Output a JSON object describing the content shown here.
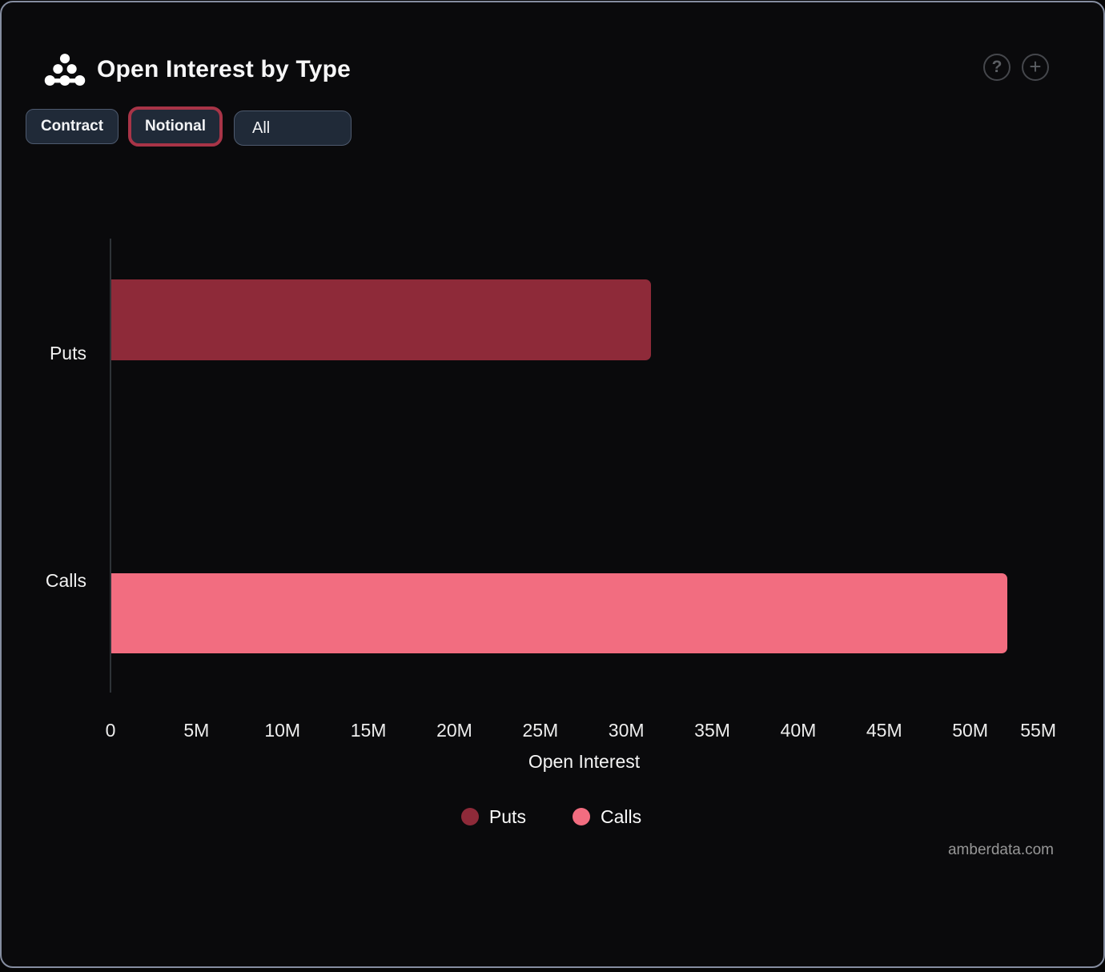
{
  "header": {
    "title": "Open Interest by Type",
    "help_label": "?",
    "add_label": "+"
  },
  "toolbar": {
    "buttons": [
      {
        "label": "Contract",
        "selected": false
      },
      {
        "label": "Notional",
        "selected": true
      },
      {
        "label": "All",
        "selected": false
      }
    ]
  },
  "chart_data": {
    "type": "bar",
    "orientation": "horizontal",
    "title": "Open Interest by Type",
    "categories": [
      "Puts",
      "Calls"
    ],
    "values": [
      31400000,
      52100000
    ],
    "values_approx_display": [
      "31.4M",
      "52.1M"
    ],
    "series_colors": [
      "#8E2A39",
      "#F26D80"
    ],
    "xlabel": "Open Interest",
    "ylabel": "",
    "xlim": [
      0,
      55000000
    ],
    "x_ticks": [
      "0",
      "5M",
      "10M",
      "15M",
      "20M",
      "25M",
      "30M",
      "35M",
      "40M",
      "45M",
      "50M",
      "55M"
    ],
    "grid": false,
    "legend_position": "bottom",
    "legend": [
      {
        "label": "Puts",
        "color": "#8E2A39"
      },
      {
        "label": "Calls",
        "color": "#F26D80"
      }
    ]
  },
  "watermark": "amberdata.com",
  "colors": {
    "card_background": "#0a0a0c",
    "card_border": "#858da0",
    "button_background": "#202a38",
    "button_border": "#4e5a6e",
    "selected_button_border": "#a83447",
    "axis_line": "#2e3338",
    "text": "#f5f5f5",
    "watermark_text": "#979797"
  }
}
